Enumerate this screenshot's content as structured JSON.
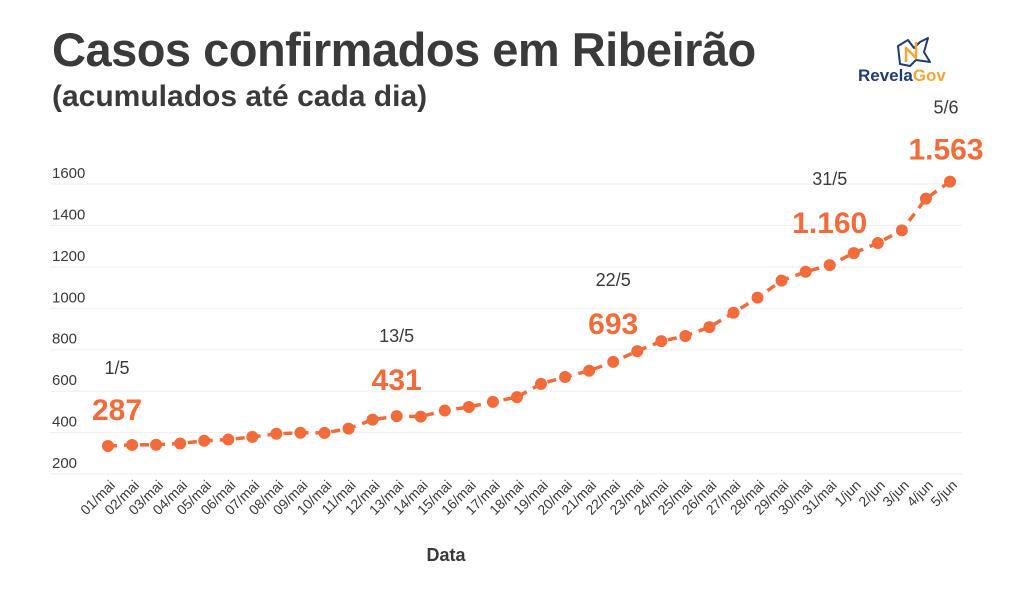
{
  "title": "Casos confirmados em Ribeirão",
  "subtitle": "(acumulados até cada dia)",
  "logo": {
    "part1": "Revela",
    "part2": "Gov",
    "icon": "map-outline-icon"
  },
  "colors": {
    "series": "#f26b3a",
    "text": "#3a3a3a",
    "grid": "#eeeeee",
    "logo_dark": "#1f3c73",
    "logo_accent": "#f0a63a"
  },
  "chart_data": {
    "type": "line",
    "title": "Casos confirmados em Ribeirão",
    "xlabel": "Data",
    "ylabel": "",
    "ylim": [
      200,
      1600
    ],
    "yticks": [
      200,
      400,
      600,
      800,
      1000,
      1200,
      1400,
      1600
    ],
    "grid": true,
    "categories": [
      "01/mai",
      "02/mai",
      "03/mai",
      "04/mai",
      "05/mai",
      "06/mai",
      "07/mai",
      "08/mai",
      "09/mai",
      "10/mai",
      "11/mai",
      "12/mai",
      "13/mai",
      "14/mai",
      "15/mai",
      "16/mai",
      "17/mai",
      "18/mai",
      "19/mai",
      "20/mai",
      "21/mai",
      "22/mai",
      "23/mai",
      "24/mai",
      "25/mai",
      "26/mai",
      "27/mai",
      "28/mai",
      "29/mai",
      "30/mai",
      "31/mai",
      "1/jun",
      "2/jun",
      "3/jun",
      "4/jun",
      "5/jun"
    ],
    "series": [
      {
        "values": [
          287,
          292,
          293,
          299,
          312,
          318,
          331,
          346,
          351,
          350,
          371,
          414,
          431,
          429,
          458,
          475,
          500,
          523,
          587,
          620,
          650,
          693,
          745,
          793,
          818,
          861,
          930,
          1003,
          1085,
          1128,
          1160,
          1218,
          1267,
          1328,
          1481,
          1563
        ]
      }
    ],
    "annotations": [
      {
        "date": "1/5",
        "value_label": "287",
        "index": 0
      },
      {
        "date": "13/5",
        "value_label": "431",
        "index": 12
      },
      {
        "date": "22/5",
        "value_label": "693",
        "index": 21
      },
      {
        "date": "31/5",
        "value_label": "1.160",
        "index": 30
      },
      {
        "date": "5/6",
        "value_label": "1.563",
        "index": 35
      }
    ]
  }
}
